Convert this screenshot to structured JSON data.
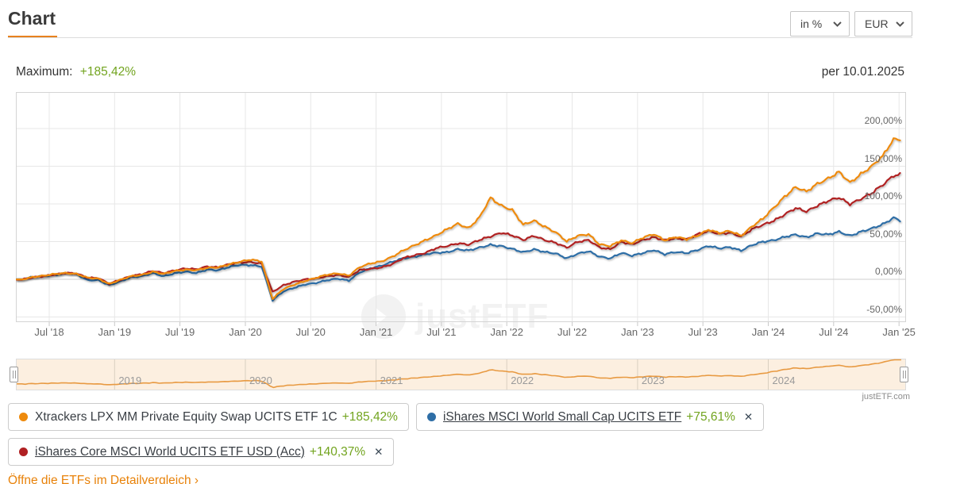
{
  "header": {
    "title": "Chart",
    "unit_select": "in %",
    "currency_select": "EUR"
  },
  "subheader": {
    "maximum_label": "Maximum:",
    "maximum_value": "+185,42%",
    "as_of": "per 10.01.2025"
  },
  "watermark": "justETF",
  "source": "justETF.com",
  "footer_link": "Öffne die ETFs im Detailvergleich ›",
  "colors": {
    "accent_orange": "#e8821e",
    "link_orange": "#e8820a",
    "positive_green": "#72a41f",
    "orange_series": "#ee8a0c",
    "red_series": "#b02023",
    "blue_series": "#2e6ea6",
    "navigator_line": "#e89a42",
    "navigator_bg": "#fcefe0"
  },
  "legend": {
    "items": [
      {
        "name": "Xtrackers LPX MM Private Equity Swap UCITS ETF 1C",
        "value": "+185,42%",
        "color": "#ee8a0c",
        "underlined": false,
        "closable": false
      },
      {
        "name": "iShares MSCI World Small Cap UCITS ETF",
        "value": "+75,61%",
        "color": "#2e6ea6",
        "underlined": true,
        "closable": true
      },
      {
        "name": "iShares Core MSCI World UCITS ETF USD (Acc)",
        "value": "+140,37%",
        "color": "#b02023",
        "underlined": true,
        "closable": true
      }
    ],
    "close_glyph": "✕"
  },
  "chart_data": {
    "type": "line",
    "title": "",
    "unit": "percent return, EUR",
    "x_start": "2018-04",
    "x_end": "2025-01",
    "x_interval": "monthly",
    "as_of": "10.01.2025",
    "xticks": [
      "Jul '18",
      "Jan '19",
      "Jul '19",
      "Jan '20",
      "Jul '20",
      "Jan '21",
      "Jul '21",
      "Jan '22",
      "Jul '22",
      "Jan '23",
      "Jul '23",
      "Jan '24",
      "Jul '24",
      "Jan '25"
    ],
    "yticks": [
      "200,00%",
      "150,00%",
      "100,00%",
      "50,00%",
      "0,00%",
      "-50,00%"
    ],
    "ytick_values": [
      200,
      150,
      100,
      50,
      0,
      -50
    ],
    "ylim": [
      -55.8,
      248.4
    ],
    "grid": true,
    "legend_position": "bottom",
    "series": [
      {
        "name": "iShares MSCI World Small Cap UCITS ETF",
        "color": "#2e6ea6",
        "final": 75.61,
        "values": [
          0,
          3,
          4.5,
          5.5,
          8,
          6.5,
          -1,
          -1,
          -8,
          -3,
          3,
          4,
          8,
          4,
          8,
          10,
          8,
          13,
          12,
          16,
          19,
          19,
          17,
          -28,
          -16,
          -11,
          -7,
          -5,
          -1,
          1,
          -2,
          9,
          15,
          18,
          23,
          28,
          30,
          33,
          35,
          36,
          40,
          38,
          42,
          46,
          44,
          40,
          36,
          40,
          36,
          34,
          28,
          34,
          37,
          30,
          28,
          35,
          31,
          35,
          39,
          33,
          36,
          35,
          39,
          44,
          41,
          43,
          38,
          45,
          50,
          52,
          56,
          59,
          56,
          61,
          59,
          63,
          58,
          63,
          67,
          73,
          82,
          75.61
        ]
      },
      {
        "name": "iShares Core MSCI World UCITS ETF USD (Acc)",
        "color": "#b02023",
        "final": 140.37,
        "values": [
          0,
          2.5,
          4,
          6.5,
          8.5,
          7.5,
          2,
          2,
          -6,
          -1,
          4.5,
          7,
          11,
          8,
          12,
          14.5,
          13,
          17,
          16,
          20,
          22,
          23,
          21,
          -17,
          -8,
          -3,
          0,
          1,
          4,
          6,
          3,
          12,
          14,
          16,
          20,
          28,
          32,
          35,
          41,
          44,
          48,
          46,
          52,
          57,
          62,
          58,
          52,
          58,
          52,
          48,
          42,
          50,
          52,
          42,
          40,
          50,
          46,
          52,
          56,
          52,
          54,
          53,
          60,
          64,
          60,
          62,
          57,
          66,
          72,
          78,
          86,
          94,
          90,
          98,
          104,
          108,
          100,
          107,
          114,
          125,
          138,
          140.37
        ]
      },
      {
        "name": "Xtrackers LPX MM Private Equity Swap UCITS ETF 1C",
        "color": "#ee8a0c",
        "final": 185.42,
        "values": [
          0,
          3,
          4.5,
          7,
          8.5,
          7,
          2,
          1,
          -6,
          -1,
          4,
          6,
          10,
          7,
          11,
          13,
          12,
          15,
          16,
          20,
          23,
          26,
          24,
          -26,
          -13,
          -7,
          -2,
          2,
          6,
          8,
          5,
          16,
          21,
          24,
          30,
          38,
          45,
          52,
          58,
          66,
          74,
          68,
          82,
          108,
          98,
          92,
          72,
          78,
          70,
          62,
          50,
          58,
          60,
          46,
          44,
          52,
          48,
          55,
          60,
          52,
          56,
          53,
          58,
          66,
          61,
          64,
          58,
          70,
          80,
          95,
          110,
          122,
          116,
          127,
          134,
          142,
          128,
          140,
          150,
          163,
          186,
          185.42
        ]
      }
    ],
    "navigator": {
      "years": [
        "2019",
        "2020",
        "2021",
        "2022",
        "2023",
        "2024"
      ],
      "series": "Xtrackers LPX MM Private Equity Swap UCITS ETF 1C"
    }
  }
}
